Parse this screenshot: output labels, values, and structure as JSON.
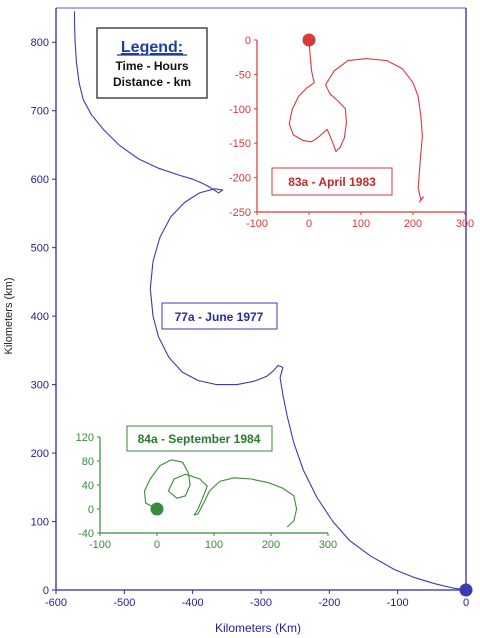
{
  "legend": {
    "title": "Legend:",
    "line1": "Time - Hours",
    "line2": "Distance - km"
  },
  "chart_data": [
    {
      "type": "line",
      "name": "main-plot",
      "series_label": "77a - June 1977",
      "xlabel": "Kilometers (Km)",
      "ylabel": "Kilometers (km)",
      "xlim": [
        -600,
        0
      ],
      "ylim": [
        0,
        850
      ],
      "xticks": [
        -600,
        -500,
        -400,
        -300,
        -200,
        -100,
        0
      ],
      "yticks": [
        0,
        100,
        200,
        300,
        400,
        500,
        600,
        700,
        800
      ],
      "color": "#3b3bb0",
      "start_marker": {
        "x": 0,
        "y": 0
      },
      "points": [
        [
          0,
          0
        ],
        [
          -20,
          3
        ],
        [
          -45,
          9
        ],
        [
          -75,
          18
        ],
        [
          -105,
          30
        ],
        [
          -140,
          50
        ],
        [
          -170,
          72
        ],
        [
          -195,
          100
        ],
        [
          -218,
          135
        ],
        [
          -238,
          175
        ],
        [
          -252,
          215
        ],
        [
          -262,
          255
        ],
        [
          -268,
          285
        ],
        [
          -272,
          310
        ],
        [
          -268,
          325
        ],
        [
          -275,
          328
        ],
        [
          -282,
          320
        ],
        [
          -292,
          312
        ],
        [
          -310,
          305
        ],
        [
          -335,
          300
        ],
        [
          -365,
          300
        ],
        [
          -392,
          306
        ],
        [
          -415,
          318
        ],
        [
          -435,
          340
        ],
        [
          -450,
          370
        ],
        [
          -458,
          400
        ],
        [
          -462,
          440
        ],
        [
          -458,
          480
        ],
        [
          -448,
          515
        ],
        [
          -432,
          545
        ],
        [
          -412,
          566
        ],
        [
          -390,
          580
        ],
        [
          -368,
          586
        ],
        [
          -356,
          584
        ],
        [
          -362,
          580
        ],
        [
          -370,
          585
        ],
        [
          -378,
          590
        ],
        [
          -388,
          595
        ],
        [
          -400,
          600
        ],
        [
          -420,
          606
        ],
        [
          -450,
          616
        ],
        [
          -480,
          630
        ],
        [
          -508,
          650
        ],
        [
          -530,
          672
        ],
        [
          -548,
          694
        ],
        [
          -560,
          716
        ],
        [
          -566,
          740
        ],
        [
          -570,
          770
        ],
        [
          -572,
          800
        ],
        [
          -573,
          830
        ],
        [
          -573,
          845
        ]
      ]
    },
    {
      "type": "line",
      "name": "inset-83a",
      "series_label": "83a - April 1983",
      "xlim": [
        -100,
        300
      ],
      "ylim": [
        -250,
        0
      ],
      "xticks": [
        -100,
        0,
        100,
        200,
        300
      ],
      "yticks": [
        0,
        -50,
        -100,
        -150,
        -200,
        -250
      ],
      "color": "#d73a3a",
      "start_marker": {
        "x": 0,
        "y": 0
      },
      "points": [
        [
          0,
          0
        ],
        [
          2,
          -20
        ],
        [
          5,
          -45
        ],
        [
          10,
          -62
        ],
        [
          -5,
          -70
        ],
        [
          -20,
          -82
        ],
        [
          -32,
          -100
        ],
        [
          -38,
          -122
        ],
        [
          -30,
          -138
        ],
        [
          -12,
          -146
        ],
        [
          5,
          -148
        ],
        [
          20,
          -140
        ],
        [
          35,
          -130
        ],
        [
          45,
          -148
        ],
        [
          52,
          -162
        ],
        [
          60,
          -156
        ],
        [
          68,
          -142
        ],
        [
          72,
          -120
        ],
        [
          70,
          -100
        ],
        [
          55,
          -88
        ],
        [
          40,
          -78
        ],
        [
          32,
          -65
        ],
        [
          48,
          -45
        ],
        [
          75,
          -30
        ],
        [
          110,
          -27
        ],
        [
          150,
          -30
        ],
        [
          180,
          -42
        ],
        [
          200,
          -62
        ],
        [
          210,
          -82
        ],
        [
          215,
          -110
        ],
        [
          218,
          -140
        ],
        [
          215,
          -165
        ],
        [
          212,
          -195
        ],
        [
          210,
          -215
        ],
        [
          215,
          -232
        ],
        [
          220,
          -228
        ],
        [
          212,
          -236
        ]
      ]
    },
    {
      "type": "line",
      "name": "inset-84a",
      "series_label": "84a - September 1984",
      "xlim": [
        -100,
        300
      ],
      "ylim": [
        -40,
        120
      ],
      "xticks": [
        -100,
        0,
        100,
        200,
        300
      ],
      "yticks": [
        120,
        80,
        40,
        0,
        -40
      ],
      "color": "#3a8a3a",
      "start_marker": {
        "x": 0,
        "y": 0
      },
      "points": [
        [
          0,
          0
        ],
        [
          -20,
          10
        ],
        [
          -22,
          30
        ],
        [
          -12,
          50
        ],
        [
          5,
          72
        ],
        [
          25,
          82
        ],
        [
          45,
          78
        ],
        [
          55,
          60
        ],
        [
          58,
          40
        ],
        [
          50,
          22
        ],
        [
          35,
          18
        ],
        [
          20,
          30
        ],
        [
          30,
          50
        ],
        [
          50,
          58
        ],
        [
          75,
          50
        ],
        [
          88,
          38
        ],
        [
          80,
          18
        ],
        [
          72,
          0
        ],
        [
          65,
          -10
        ],
        [
          72,
          -8
        ],
        [
          82,
          10
        ],
        [
          92,
          30
        ],
        [
          110,
          46
        ],
        [
          135,
          52
        ],
        [
          165,
          50
        ],
        [
          195,
          44
        ],
        [
          220,
          35
        ],
        [
          240,
          22
        ],
        [
          245,
          0
        ],
        [
          240,
          -20
        ],
        [
          228,
          -30
        ]
      ]
    }
  ]
}
